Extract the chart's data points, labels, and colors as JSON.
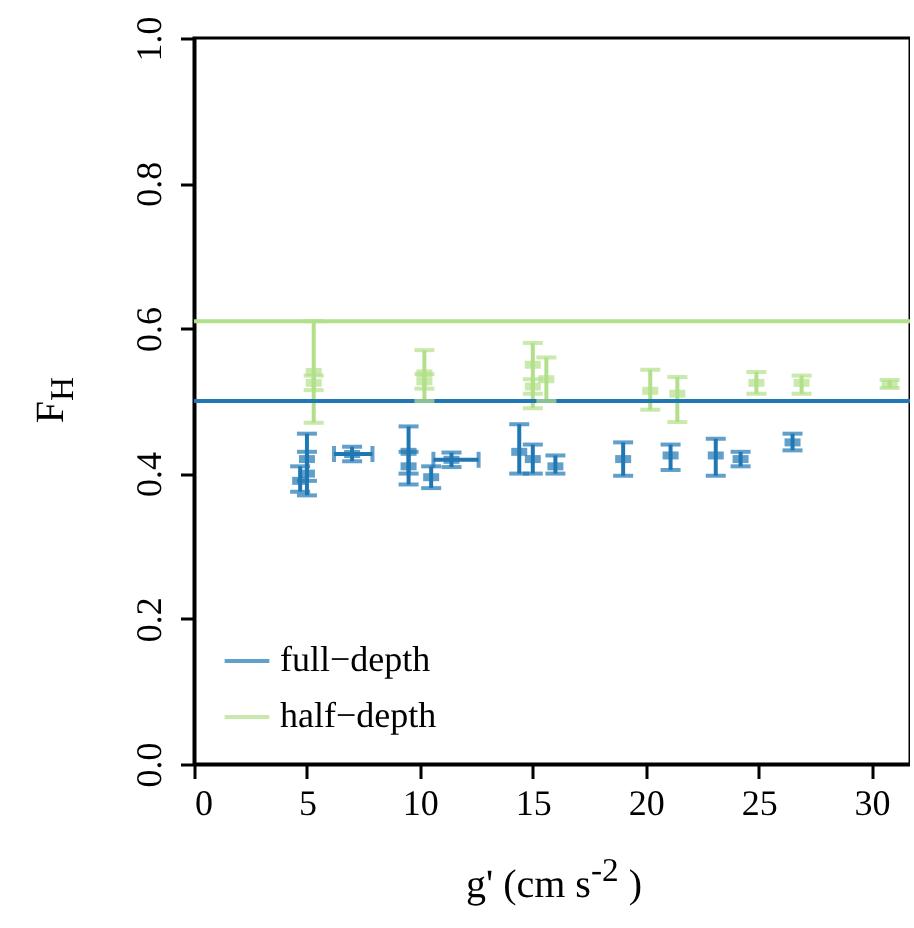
{
  "chart_data": {
    "type": "scatter",
    "xlabel": "g' (cm s$^{-2}$ )",
    "ylabel": "F$_{H}$",
    "xlim": [
      0,
      31.7
    ],
    "xticks": [
      0,
      5,
      10,
      15,
      20,
      25,
      30
    ],
    "ylim": [
      0,
      1
    ],
    "yticks": [
      {
        "value": 0,
        "label": "0.0"
      },
      {
        "value": 0.2,
        "label": "0.2"
      },
      {
        "value": 0.4,
        "label": "0.4"
      },
      {
        "value": 0.6,
        "label": "0.6"
      },
      {
        "value": 0.8,
        "label": "0.8"
      },
      {
        "value": 1,
        "label": "1.0"
      }
    ],
    "legend": "bottom left",
    "ref_lines": [
      {
        "axis": "y",
        "value": 0.5,
        "color": "#1f78b4"
      },
      {
        "axis": "y",
        "value": 0.61,
        "color": "#b2df8a"
      }
    ],
    "series": [
      {
        "name": "full−depth",
        "color": "#1f78b4",
        "x": [
          5.0,
          5.0,
          4.7,
          7.0,
          9.5,
          9.5,
          10.5,
          11.4,
          14.4,
          15.0,
          16.0,
          19.0,
          21.1,
          23.1,
          24.2,
          26.5
        ],
        "values": [
          0.42,
          0.4,
          0.39,
          0.427,
          0.43,
          0.41,
          0.395,
          0.419,
          0.43,
          0.42,
          0.41,
          0.42,
          0.425,
          0.425,
          0.42,
          0.443
        ],
        "errors": [
          [
            0.39,
            0.455
          ],
          [
            0.37,
            0.43
          ],
          [
            0.375,
            0.41
          ],
          0.01,
          [
            0.4,
            0.465
          ],
          [
            0.385,
            0.43
          ],
          [
            0.38,
            0.41
          ],
          0.01,
          [
            0.4,
            0.468
          ],
          [
            0.4,
            0.44
          ],
          [
            0.4,
            0.425
          ],
          [
            0.397,
            0.443
          ],
          [
            0.405,
            0.44
          ],
          [
            0.397,
            0.448
          ],
          0.01,
          [
            0.432,
            0.455
          ]
        ],
        "xerrors": [
          null,
          null,
          null,
          [
            6.2,
            7.9
          ],
          null,
          null,
          null,
          [
            10.6,
            12.6
          ],
          null,
          null,
          null,
          null,
          null,
          null,
          null,
          null
        ]
      },
      {
        "name": "half−depth",
        "color": "#b2df8a",
        "x": [
          5.3,
          5.3,
          10.2,
          10.2,
          15.0,
          15.0,
          15.6,
          20.2,
          21.4,
          24.9,
          26.9,
          30.8
        ],
        "values": [
          0.54,
          0.525,
          0.538,
          0.527,
          0.55,
          0.52,
          0.53,
          0.514,
          0.51,
          0.525,
          0.525,
          0.523
        ],
        "errors": [
          [
            0.47,
            0.61
          ],
          0.01,
          [
            0.5,
            0.57
          ],
          0.01,
          [
            0.49,
            0.58
          ],
          0.01,
          [
            0.5,
            0.56
          ],
          [
            0.488,
            0.543
          ],
          [
            0.471,
            0.533
          ],
          [
            0.51,
            0.54
          ],
          [
            0.51,
            0.535
          ],
          [
            0.518,
            0.529
          ]
        ]
      }
    ]
  }
}
